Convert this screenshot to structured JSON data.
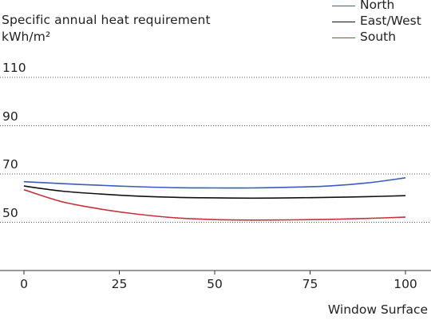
{
  "chart_data": {
    "type": "line",
    "title": "Specific annual heat requirement",
    "subtitle": "kWh/m²",
    "xlabel": "Window Surface",
    "ylabel": "",
    "xlim": [
      0,
      100
    ],
    "ylim": [
      30,
      110
    ],
    "x_ticks": [
      0,
      25,
      50,
      75,
      100
    ],
    "y_ticks": [
      50,
      70,
      90,
      110
    ],
    "grid": "horizontal dotted",
    "legend_position": "top-right",
    "x": [
      0,
      10,
      20,
      30,
      40,
      50,
      60,
      70,
      80,
      90,
      100
    ],
    "series": [
      {
        "name": "North",
        "color": "#3a5bbf",
        "values": [
          66.8,
          66.0,
          65.3,
          64.7,
          64.3,
          64.2,
          64.2,
          64.5,
          65.0,
          66.3,
          68.4
        ]
      },
      {
        "name": "East/West",
        "color": "#111111",
        "values": [
          65.0,
          62.9,
          61.7,
          60.8,
          60.3,
          60.1,
          60.0,
          60.1,
          60.3,
          60.6,
          61.0
        ]
      },
      {
        "name": "South",
        "color": "#c8323c",
        "values": [
          63.5,
          58.5,
          55.5,
          53.3,
          51.8,
          51.1,
          50.9,
          51.0,
          51.2,
          51.6,
          52.1
        ]
      }
    ]
  }
}
